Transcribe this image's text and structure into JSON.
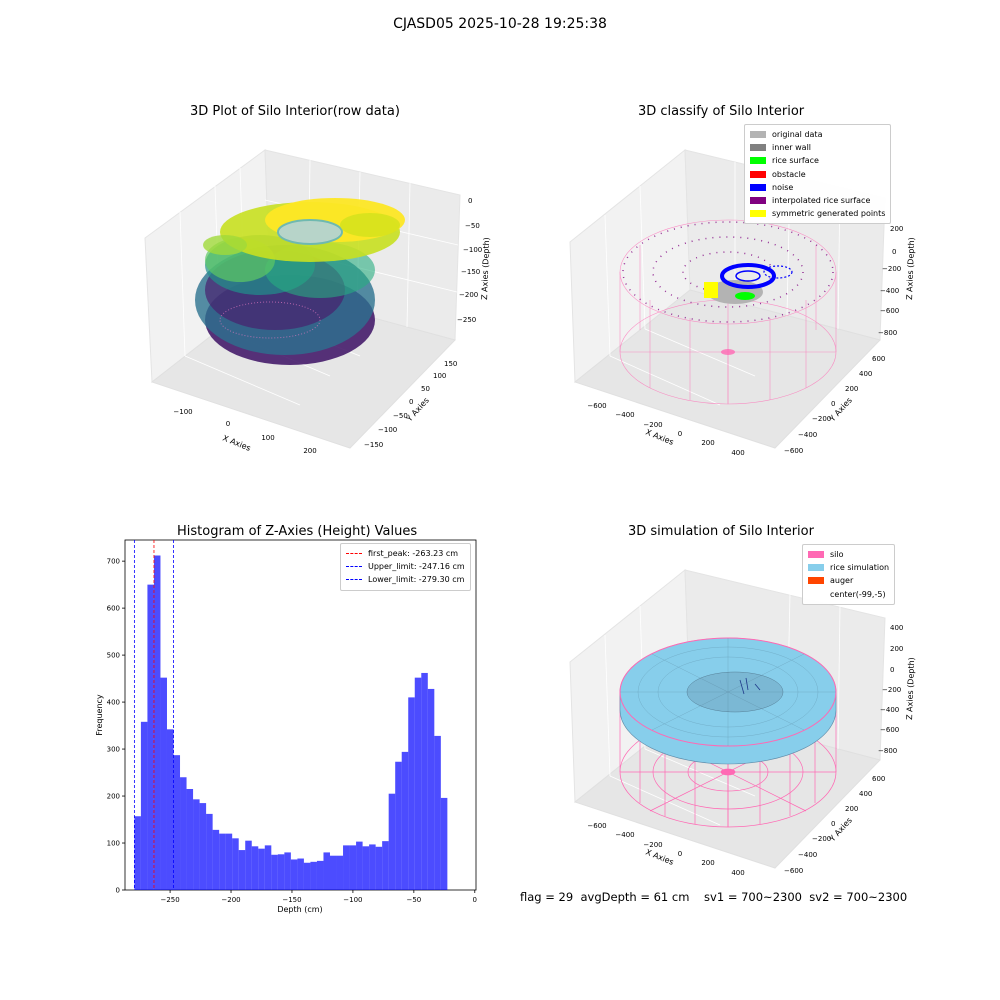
{
  "suptitle": "CJASD05 2025-10-28 19:25:38",
  "panels": {
    "raw": {
      "title": "3D Plot of Silo Interior(row data)",
      "xlabel": "X Axies",
      "ylabel": "Y Axies",
      "zlabel": "Z Axies (Depth)",
      "xticks": [
        "−100",
        "0",
        "100",
        "200"
      ],
      "yticks": [
        "150",
        "100",
        "50",
        "0",
        "−50",
        "−100",
        "−150"
      ],
      "zticks": [
        "0",
        "−50",
        "−100",
        "−150",
        "−200",
        "−250"
      ]
    },
    "classify": {
      "title": "3D classify of Silo Interior",
      "xlabel": "X Axies",
      "ylabel": "Y Axies",
      "zlabel": "Z Axies (Depth)",
      "xticks": [
        "−600",
        "−400",
        "−200",
        "0",
        "200",
        "400"
      ],
      "yticks": [
        "600",
        "400",
        "200",
        "0",
        "−200",
        "−400",
        "−600"
      ],
      "zticks": [
        "200",
        "0",
        "−200",
        "−400",
        "−600",
        "−800"
      ],
      "legend": [
        {
          "label": "original data",
          "color": "#b3b3b3"
        },
        {
          "label": "inner wall",
          "color": "#808080"
        },
        {
          "label": "rice surface",
          "color": "#00ff00"
        },
        {
          "label": "obstacle",
          "color": "#ff0000"
        },
        {
          "label": "noise",
          "color": "#0000ff"
        },
        {
          "label": "interpolated rice surface",
          "color": "#800080"
        },
        {
          "label": "symmetric generated points",
          "color": "#ffff00"
        }
      ]
    },
    "sim": {
      "title": "3D simulation of Silo Interior",
      "xlabel": "X Axies",
      "ylabel": "Y Axies",
      "zlabel": "Z Axies (Depth)",
      "xticks": [
        "−600",
        "−400",
        "−200",
        "0",
        "200",
        "400"
      ],
      "yticks": [
        "600",
        "400",
        "200",
        "0",
        "−200",
        "−400",
        "−600"
      ],
      "zticks": [
        "400",
        "200",
        "0",
        "−200",
        "−400",
        "−600",
        "−800"
      ],
      "legend": [
        {
          "label": "silo",
          "color": "#ff69b4"
        },
        {
          "label": "rice simulation",
          "color": "#87ceeb"
        },
        {
          "label": "auger",
          "color": "#ff4500"
        },
        {
          "label": "center(-99,-5)",
          "color": "#ffffff"
        }
      ]
    }
  },
  "chart_data": [
    {
      "type": "bar",
      "title": "Histogram of Z-Axies (Height) Values",
      "xlabel": "Depth (cm)",
      "ylabel": "Frequency",
      "xlim": [
        -287,
        1
      ],
      "ylim": [
        0,
        745
      ],
      "xticks": [
        -250,
        -200,
        -150,
        -100,
        -50,
        0
      ],
      "xtick_labels": [
        "−250",
        "−200",
        "−150",
        "−100",
        "−50",
        "0"
      ],
      "yticks": [
        0,
        100,
        200,
        300,
        400,
        500,
        600,
        700
      ],
      "bin_start": -279.3,
      "bin_width": 5.35,
      "values": [
        157,
        358,
        650,
        712,
        452,
        342,
        287,
        240,
        215,
        193,
        185,
        162,
        128,
        120,
        120,
        110,
        85,
        105,
        93,
        88,
        95,
        75,
        76,
        80,
        65,
        67,
        58,
        60,
        62,
        80,
        73,
        73,
        95,
        95,
        103,
        93,
        97,
        92,
        104,
        205,
        273,
        294,
        410,
        452,
        462,
        428,
        328,
        196
      ],
      "bar_color": "#0000ff",
      "bar_alpha": 0.7,
      "vlines": [
        {
          "label": "first_peak: -263.23 cm",
          "x": -263.23,
          "color": "#ff0000"
        },
        {
          "label": "Upper_limit: -247.16 cm",
          "x": -247.16,
          "color": "#0000ff"
        },
        {
          "label": "Lower_limit: -279.30 cm",
          "x": -279.3,
          "color": "#0000ff"
        }
      ],
      "legend_position": "top-right"
    }
  ],
  "status": "flag = 29  avgDepth = 61 cm    sv1 = 700~2300  sv2 = 700~2300"
}
